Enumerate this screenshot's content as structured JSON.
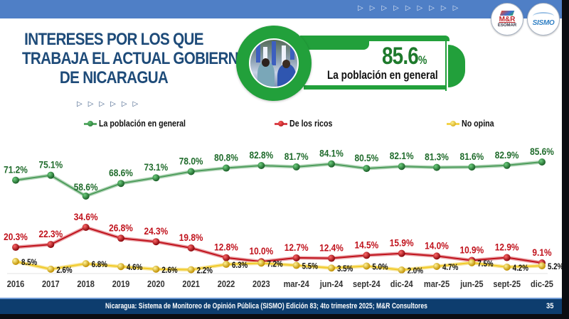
{
  "header": {
    "title_lines": [
      "INTERESES POR LOS QUE",
      "TRABAJA EL ACTUAL GOBIERNO",
      "DE NICARAGUA"
    ],
    "arrow_glyph": "▷",
    "logos": {
      "mr": {
        "name": "M&R",
        "sub": "ESOMAR"
      },
      "sismo": {
        "name": "SISMO"
      }
    }
  },
  "highlight": {
    "value": "85.6",
    "unit": "%",
    "label": "La población en general"
  },
  "colors": {
    "accent_green": "#22a03b",
    "series_green": "#2e7d3e",
    "series_red": "#c0121c",
    "series_yellow": "#f2c40f",
    "title_blue": "#1e4b79",
    "band_blue": "#4f7fc6",
    "footer_blue": "#0d3d6e"
  },
  "chart_data": {
    "type": "line",
    "title": "Intereses por los que trabaja el actual gobierno de Nicaragua",
    "xlabel": "",
    "ylabel": "",
    "ylim": [
      0,
      100
    ],
    "grid": false,
    "legend_position": "top",
    "categories": [
      "2016",
      "2017",
      "2018",
      "2019",
      "2020",
      "2021",
      "2022",
      "2023",
      "mar-24",
      "jun-24",
      "sept-24",
      "dic-24",
      "mar-25",
      "jun-25",
      "sept-25",
      "dic-25"
    ],
    "series": [
      {
        "name": "La población en general",
        "color": "#2e7d3e",
        "label_color": "#1f6b2b",
        "values": [
          71.2,
          75.1,
          58.6,
          68.6,
          73.1,
          78.0,
          80.8,
          82.8,
          81.7,
          84.1,
          80.5,
          82.1,
          81.3,
          81.6,
          82.9,
          85.6
        ],
        "labels": [
          "71.2%",
          "75.1%",
          "58.6%",
          "68.6%",
          "73.1%",
          "78.0%",
          "80.8%",
          "82.8%",
          "81.7%",
          "84.1%",
          "80.5%",
          "82.1%",
          "81.3%",
          "81.6%",
          "82.9%",
          "85.6%"
        ]
      },
      {
        "name": "De los ricos",
        "color": "#c0121c",
        "label_color": "#c0121c",
        "values": [
          20.3,
          22.3,
          34.6,
          26.8,
          24.3,
          19.8,
          12.8,
          10.0,
          12.7,
          12.4,
          14.5,
          15.9,
          14.0,
          10.9,
          12.9,
          9.1
        ],
        "labels": [
          "20.3%",
          "22.3%",
          "34.6%",
          "26.8%",
          "24.3%",
          "19.8%",
          "12.8%",
          "10.0%",
          "12.7%",
          "12.4%",
          "14.5%",
          "15.9%",
          "14.0%",
          "10.9%",
          "12.9%",
          "9.1%"
        ]
      },
      {
        "name": "No opina",
        "color": "#f2c40f",
        "label_color": "#111111",
        "values": [
          8.5,
          2.6,
          6.8,
          4.6,
          2.6,
          2.2,
          6.3,
          7.2,
          5.5,
          3.5,
          5.0,
          2.0,
          4.7,
          7.5,
          4.2,
          5.2
        ],
        "labels": [
          "8.5%",
          "2.6%",
          "6.8%",
          "4.6%",
          "2.6%",
          "2.2%",
          "6.3%",
          "7.2%",
          "5.5%",
          "3.5%",
          "5.0%",
          "2.0%",
          "4.7%",
          "7.5%",
          "4.2%",
          "5.2%"
        ]
      }
    ]
  },
  "footer": {
    "source": "Nicaragua: Sistema de Monitoreo de Opinión Pública (SISMO) Edición 83; 4to trimestre 2025; M&R Consultores",
    "page_number": "35"
  }
}
